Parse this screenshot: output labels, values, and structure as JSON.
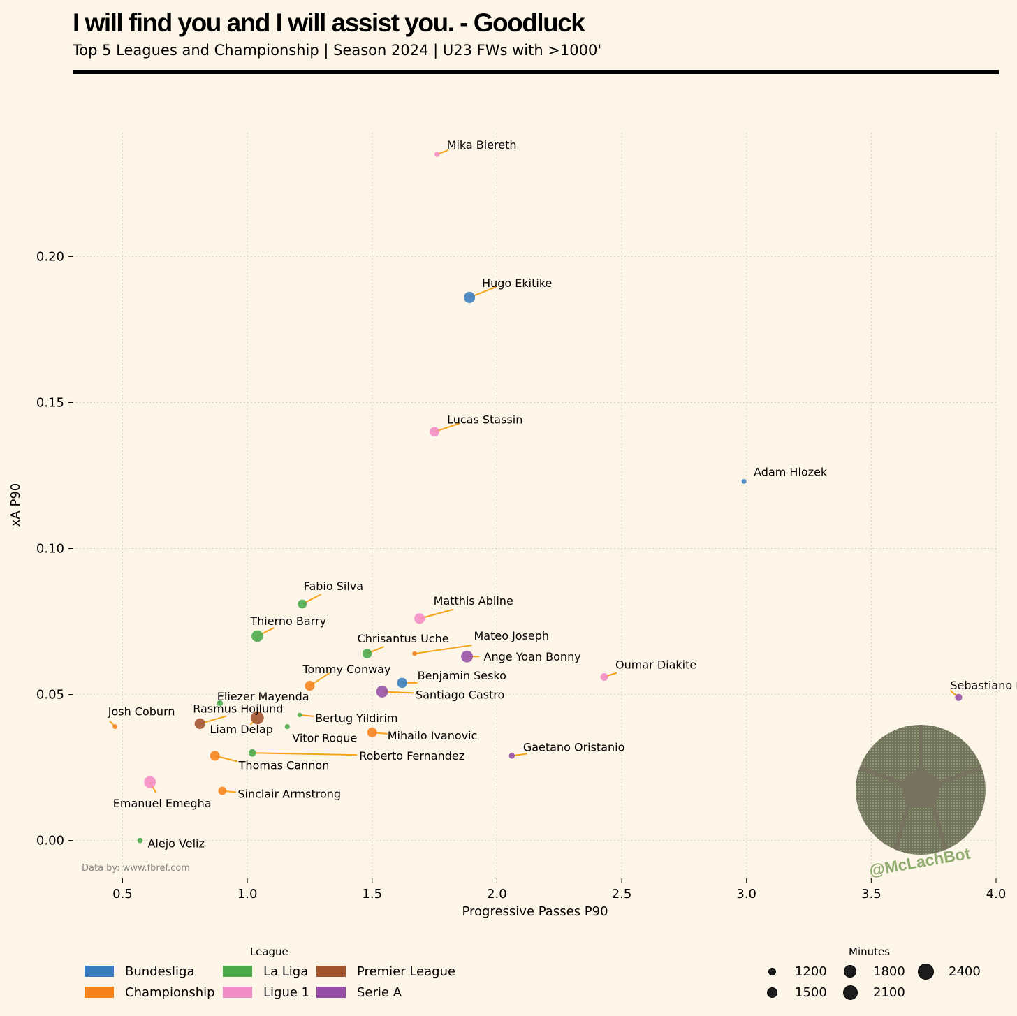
{
  "header": {
    "title": "I will find you and I will assist you. - Goodluck",
    "subtitle": "Top 5 Leagues and Championship | Season 2024 | U23 FWs with >1000'"
  },
  "footer": {
    "source": "Data by: www.fbref.com",
    "watermark": "@McLachBot"
  },
  "colors": {
    "background": "#fdf6e8",
    "annotation_line": "#f5a31a",
    "Bundesliga": "#3a7dbf",
    "Championship": "#f7821a",
    "La Liga": "#4aaa4a",
    "Premier League": "#a0522d",
    "Ligue 1": "#f28cc4",
    "Serie A": "#9550a5"
  },
  "legend": {
    "league_title": "League",
    "leagues": [
      "Bundesliga",
      "Championship",
      "La Liga",
      "Ligue 1",
      "Premier League",
      "Serie A"
    ],
    "minutes_title": "Minutes",
    "minutes": [
      1200,
      1500,
      1800,
      2100,
      2400
    ]
  },
  "chart_data": {
    "type": "scatter",
    "xlabel": "Progressive Passes P90",
    "ylabel": "xA P90",
    "xlim": [
      0.3,
      4.0
    ],
    "ylim": [
      -0.013,
      0.252
    ],
    "xticks": [
      "0.5",
      "1.0",
      "1.5",
      "2.0",
      "2.5",
      "3.0",
      "3.5",
      "4.0"
    ],
    "yticks": [
      "0.00",
      "0.05",
      "0.10",
      "0.15",
      "0.20"
    ],
    "grid": true,
    "points": [
      {
        "name": "Mika Biereth",
        "x": 1.76,
        "y": 0.235,
        "league": "Ligue 1",
        "minutes": 1200
      },
      {
        "name": "Hugo Ekitike",
        "x": 1.89,
        "y": 0.186,
        "league": "Bundesliga",
        "minutes": 2200
      },
      {
        "name": "Lucas Stassin",
        "x": 1.75,
        "y": 0.14,
        "league": "Ligue 1",
        "minutes": 1900
      },
      {
        "name": "Adam Hlozek",
        "x": 2.99,
        "y": 0.123,
        "league": "Bundesliga",
        "minutes": 1100
      },
      {
        "name": "Fabio Silva",
        "x": 1.22,
        "y": 0.081,
        "league": "La Liga",
        "minutes": 1800
      },
      {
        "name": "Matthis Abline",
        "x": 1.69,
        "y": 0.076,
        "league": "Ligue 1",
        "minutes": 2100
      },
      {
        "name": "Thierno Barry",
        "x": 1.04,
        "y": 0.07,
        "league": "La Liga",
        "minutes": 2250
      },
      {
        "name": "Chrisantus Uche",
        "x": 1.48,
        "y": 0.064,
        "league": "La Liga",
        "minutes": 1900
      },
      {
        "name": "Mateo Joseph",
        "x": 1.67,
        "y": 0.064,
        "league": "Championship",
        "minutes": 1100
      },
      {
        "name": "Ange Yoan Bonny",
        "x": 1.88,
        "y": 0.063,
        "league": "Serie A",
        "minutes": 2300
      },
      {
        "name": "Oumar Diakite",
        "x": 2.43,
        "y": 0.056,
        "league": "Ligue 1",
        "minutes": 1600
      },
      {
        "name": "Tommy Conway",
        "x": 1.25,
        "y": 0.053,
        "league": "Championship",
        "minutes": 1950
      },
      {
        "name": "Benjamin Sesko",
        "x": 1.62,
        "y": 0.054,
        "league": "Bundesliga",
        "minutes": 2000
      },
      {
        "name": "Santiago Castro",
        "x": 1.54,
        "y": 0.051,
        "league": "Serie A",
        "minutes": 2300
      },
      {
        "name": "Sebastiano Esposito",
        "x": 3.85,
        "y": 0.049,
        "league": "Serie A",
        "minutes": 1500
      },
      {
        "name": "Eliezer Mayenda",
        "x": 0.89,
        "y": 0.047,
        "league": "La Liga",
        "minutes": 1300
      },
      {
        "name": "Josh Coburn",
        "x": 0.47,
        "y": 0.039,
        "league": "Championship",
        "minutes": 1100
      },
      {
        "name": "Rasmus Hojlund",
        "x": 0.81,
        "y": 0.04,
        "league": "Premier League",
        "minutes": 2100
      },
      {
        "name": "Liam Delap",
        "x": 1.04,
        "y": 0.042,
        "league": "Premier League",
        "minutes": 2500
      },
      {
        "name": "Bertug Yildirim",
        "x": 1.21,
        "y": 0.043,
        "league": "La Liga",
        "minutes": 1050
      },
      {
        "name": "Vitor Roque",
        "x": 1.16,
        "y": 0.039,
        "league": "La Liga",
        "minutes": 1150
      },
      {
        "name": "Mihailo Ivanovic",
        "x": 1.5,
        "y": 0.037,
        "league": "Championship",
        "minutes": 1950
      },
      {
        "name": "Thomas Cannon",
        "x": 0.87,
        "y": 0.029,
        "league": "Championship",
        "minutes": 1950
      },
      {
        "name": "Roberto Fernandez",
        "x": 1.02,
        "y": 0.03,
        "league": "La Liga",
        "minutes": 1550
      },
      {
        "name": "Gaetano Oristanio",
        "x": 2.06,
        "y": 0.029,
        "league": "Serie A",
        "minutes": 1300
      },
      {
        "name": "Emanuel Emegha",
        "x": 0.61,
        "y": 0.02,
        "league": "Ligue 1",
        "minutes": 2300
      },
      {
        "name": "Sinclair Armstrong",
        "x": 0.9,
        "y": 0.017,
        "league": "Championship",
        "minutes": 1700
      },
      {
        "name": "Alejo Veliz",
        "x": 0.57,
        "y": 0.0,
        "league": "La Liga",
        "minutes": 1200
      }
    ]
  }
}
